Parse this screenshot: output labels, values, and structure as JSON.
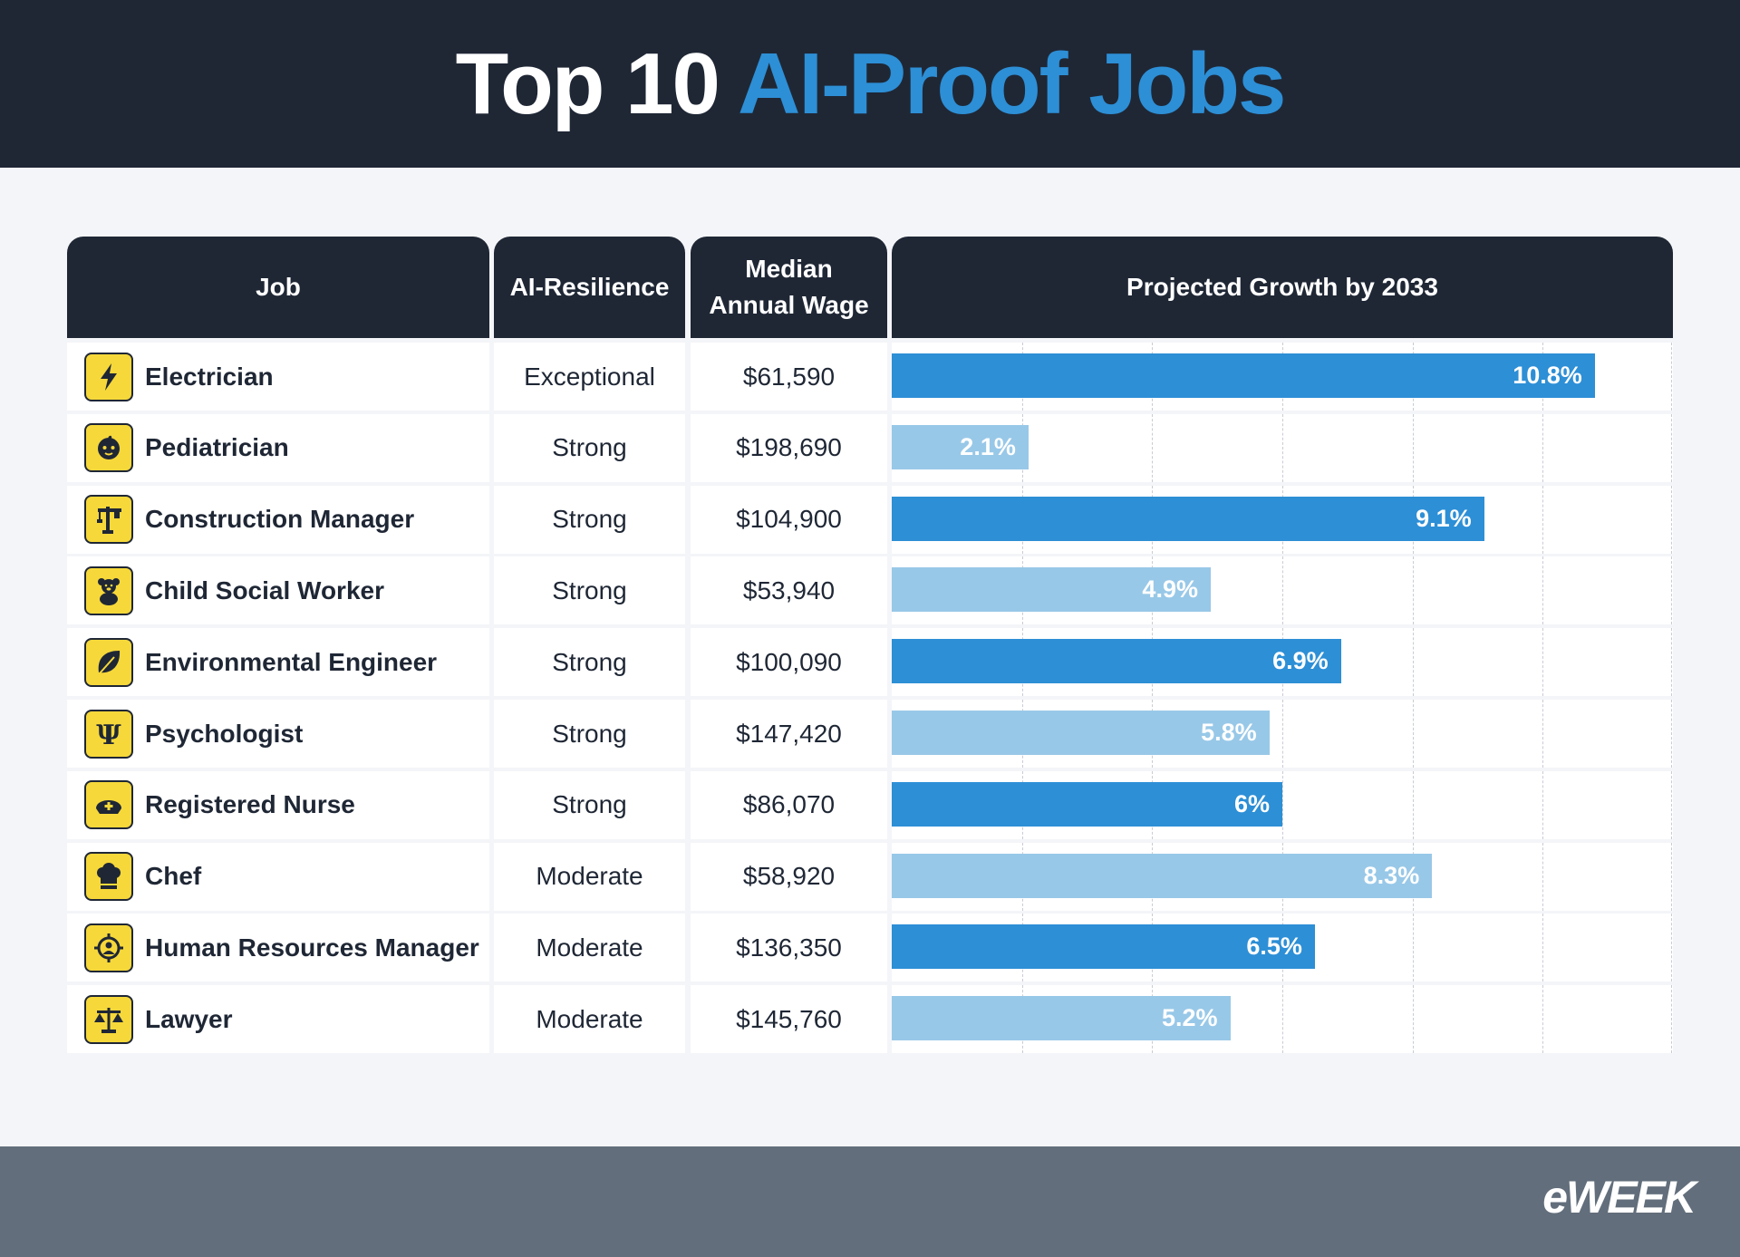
{
  "title": {
    "part1": "Top 10",
    "part2": "AI-Proof Jobs"
  },
  "columns": {
    "job": "Job",
    "resilience": "AI-Resilience",
    "wage_line1": "Median",
    "wage_line2": "Annual Wage",
    "growth": "Projected Growth by 2033"
  },
  "colors": {
    "dark": "#1f2735",
    "bar_dark": "#2d8fd6",
    "bar_light": "#98c8e8",
    "icon_bg": "#f6d83a"
  },
  "rows": [
    {
      "job": "Electrician",
      "icon": "lightning-icon",
      "resilience": "Exceptional",
      "wage": "$61,590",
      "growth_label": "10.8%"
    },
    {
      "job": "Pediatrician",
      "icon": "baby-face-icon",
      "resilience": "Strong",
      "wage": "$198,690",
      "growth_label": "2.1%"
    },
    {
      "job": "Construction Manager",
      "icon": "crane-icon",
      "resilience": "Strong",
      "wage": "$104,900",
      "growth_label": "9.1%"
    },
    {
      "job": "Child Social Worker",
      "icon": "teddy-bear-icon",
      "resilience": "Strong",
      "wage": "$53,940",
      "growth_label": "4.9%"
    },
    {
      "job": "Environmental Engineer",
      "icon": "leaf-icon",
      "resilience": "Strong",
      "wage": "$100,090",
      "growth_label": "6.9%"
    },
    {
      "job": "Psychologist",
      "icon": "psi-icon",
      "resilience": "Strong",
      "wage": "$147,420",
      "growth_label": "5.8%"
    },
    {
      "job": "Registered Nurse",
      "icon": "nurse-cap-icon",
      "resilience": "Strong",
      "wage": "$86,070",
      "growth_label": "6%"
    },
    {
      "job": "Chef",
      "icon": "chef-hat-icon",
      "resilience": "Moderate",
      "wage": "$58,920",
      "growth_label": "8.3%"
    },
    {
      "job": "Human Resources Manager",
      "icon": "hr-person-icon",
      "resilience": "Moderate",
      "wage": "$136,350",
      "growth_label": "6.5%"
    },
    {
      "job": "Lawyer",
      "icon": "scales-icon",
      "resilience": "Moderate",
      "wage": "$145,760",
      "growth_label": "5.2%"
    }
  ],
  "chart_data": {
    "type": "bar",
    "orientation": "horizontal",
    "categories": [
      "Electrician",
      "Pediatrician",
      "Construction Manager",
      "Child Social Worker",
      "Environmental Engineer",
      "Psychologist",
      "Registered Nurse",
      "Chef",
      "Human Resources Manager",
      "Lawyer"
    ],
    "values": [
      10.8,
      2.1,
      9.1,
      4.9,
      6.9,
      5.8,
      6.0,
      8.3,
      6.5,
      5.2
    ],
    "title": "Projected Growth by 2033",
    "xlim": [
      0,
      12
    ],
    "grid": true
  },
  "footer": {
    "logo": "eWEEK"
  }
}
